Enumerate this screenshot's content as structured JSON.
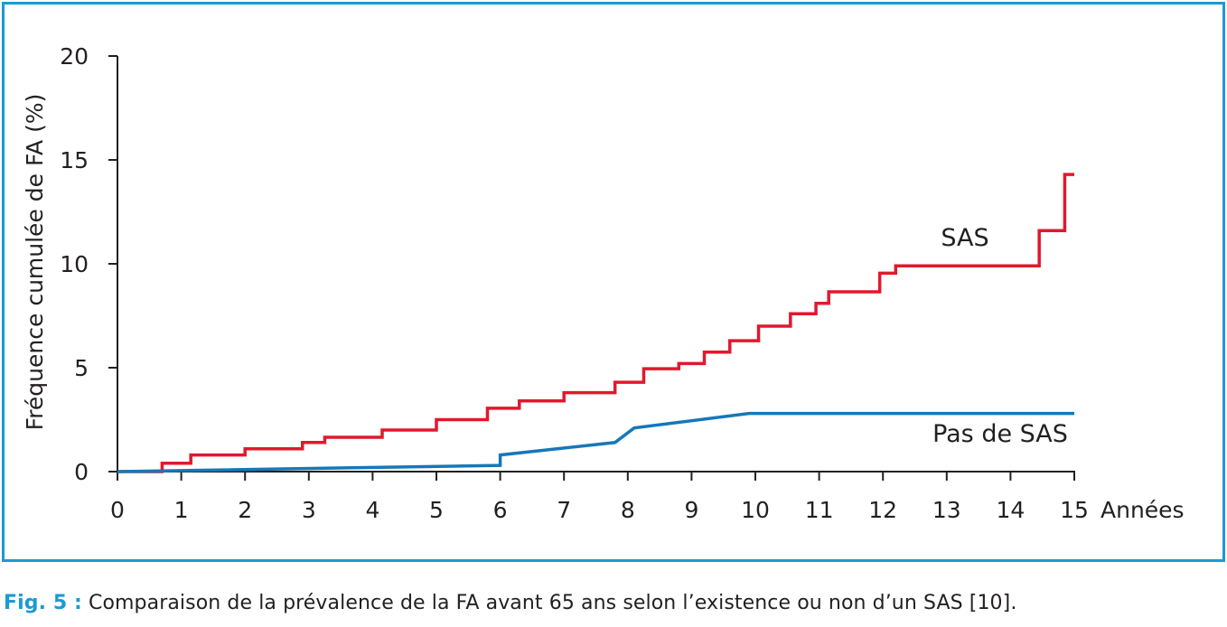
{
  "chart_data": {
    "type": "line",
    "xlabel": "Années",
    "ylabel": "Fréquence cumulée de FA (%)",
    "xlim": [
      0,
      15
    ],
    "ylim": [
      0,
      20
    ],
    "x_ticks": [
      "0",
      "1",
      "2",
      "3",
      "4",
      "5",
      "6",
      "7",
      "8",
      "9",
      "10",
      "11",
      "12",
      "13",
      "14",
      "15"
    ],
    "y_ticks": [
      "0",
      "5",
      "10",
      "15",
      "20"
    ],
    "grid": false,
    "step": true,
    "series": [
      {
        "name": "SAS",
        "color": "#e0192d",
        "x": [
          0,
          0.7,
          1.0,
          1.15,
          1.7,
          2.0,
          2.9,
          3.25,
          4.15,
          5.0,
          5.8,
          6.3,
          7.0,
          7.8,
          8.25,
          8.8,
          9.2,
          9.6,
          10.05,
          10.55,
          10.95,
          11.15,
          11.95,
          12.2,
          14.45,
          14.85,
          15.0
        ],
        "y": [
          0,
          0.4,
          0.4,
          0.8,
          0.8,
          1.1,
          1.4,
          1.65,
          2.0,
          2.5,
          3.05,
          3.4,
          3.8,
          4.3,
          4.95,
          5.2,
          5.75,
          6.3,
          7.0,
          7.6,
          8.1,
          8.65,
          9.55,
          9.9,
          11.6,
          14.3,
          14.3
        ]
      },
      {
        "name": "Pas de SAS",
        "color": "#1578b8",
        "x": [
          0,
          6.0,
          6.0,
          7.8,
          8.1,
          9.9,
          15.0
        ],
        "y": [
          0,
          0.3,
          0.8,
          1.4,
          2.1,
          2.8,
          2.8
        ]
      }
    ]
  },
  "caption": {
    "lead": "Fig. 5 :",
    "text": " Comparaison de la prévalence de la FA avant 65 ans selon l’existence ou non d’un SAS [10]."
  }
}
